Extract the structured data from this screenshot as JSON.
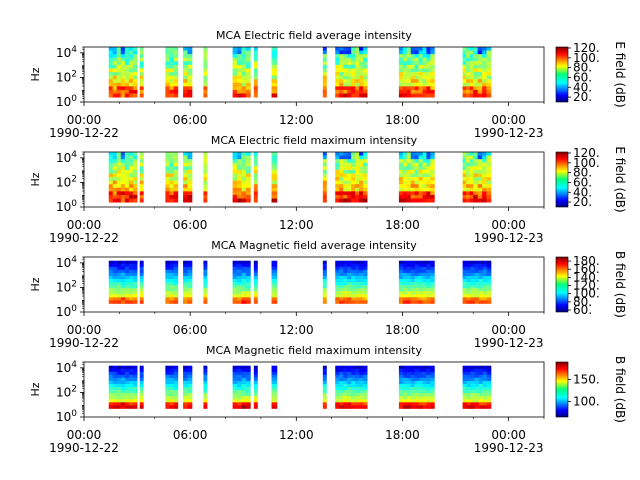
{
  "chart_data": [
    {
      "type": "heatmap",
      "title": "MCA  Electric field average intensity",
      "ylabel": "Hz",
      "y_scale": "log",
      "ylim": [
        1,
        30000
      ],
      "y_ticks": [
        {
          "exp": "0",
          "v": 1
        },
        {
          "exp": "2",
          "v": 100
        },
        {
          "exp": "4",
          "v": 10000
        }
      ],
      "xlim": [
        0,
        26
      ],
      "x_ticks": [
        {
          "v": 0,
          "label": "00:00"
        },
        {
          "v": 6,
          "label": "06:00"
        },
        {
          "v": 12,
          "label": "12:00"
        },
        {
          "v": 18,
          "label": "18:00"
        },
        {
          "v": 24,
          "label": "00:00"
        }
      ],
      "x_date_labels": [
        {
          "v": 0,
          "label": "1990-12-22"
        },
        {
          "v": 24,
          "label": "1990-12-23"
        }
      ],
      "colorbar": {
        "label": "E field (dB)",
        "ticks": [
          20,
          40,
          60,
          80,
          100,
          120
        ],
        "range": [
          10,
          122
        ],
        "tick_suffix": "."
      },
      "segments": [
        [
          1.4,
          1.85
        ],
        [
          1.85,
          3.0
        ],
        [
          3.15,
          3.35
        ],
        [
          4.6,
          5.3
        ],
        [
          5.6,
          6.1
        ],
        [
          6.75,
          6.95
        ],
        [
          8.4,
          9.4
        ],
        [
          9.6,
          9.8
        ],
        [
          10.6,
          10.9
        ],
        [
          13.5,
          13.7
        ],
        [
          14.2,
          16.0
        ],
        [
          17.8,
          19.8
        ],
        [
          21.4,
          22.0
        ],
        [
          22.0,
          23.0
        ]
      ],
      "freq_range": [
        2.5,
        30000
      ]
    },
    {
      "type": "heatmap",
      "title": "MCA  Electric field maximum intensity",
      "ylabel": "Hz",
      "y_scale": "log",
      "ylim": [
        1,
        30000
      ],
      "y_ticks": [
        {
          "exp": "0",
          "v": 1
        },
        {
          "exp": "2",
          "v": 100
        },
        {
          "exp": "4",
          "v": 10000
        }
      ],
      "xlim": [
        0,
        26
      ],
      "x_ticks": [
        {
          "v": 0,
          "label": "00:00"
        },
        {
          "v": 6,
          "label": "06:00"
        },
        {
          "v": 12,
          "label": "12:00"
        },
        {
          "v": 18,
          "label": "18:00"
        },
        {
          "v": 24,
          "label": "00:00"
        }
      ],
      "x_date_labels": [
        {
          "v": 0,
          "label": "1990-12-22"
        },
        {
          "v": 24,
          "label": "1990-12-23"
        }
      ],
      "colorbar": {
        "label": "E field (dB)",
        "ticks": [
          20,
          40,
          60,
          80,
          100,
          120
        ],
        "range": [
          10,
          122
        ],
        "tick_suffix": "."
      },
      "segments": [
        [
          1.4,
          1.85
        ],
        [
          1.85,
          3.0
        ],
        [
          3.15,
          3.35
        ],
        [
          4.6,
          5.3
        ],
        [
          5.6,
          6.1
        ],
        [
          6.75,
          6.95
        ],
        [
          8.4,
          9.4
        ],
        [
          9.6,
          9.8
        ],
        [
          10.6,
          10.9
        ],
        [
          13.5,
          13.7
        ],
        [
          14.2,
          16.0
        ],
        [
          17.8,
          19.8
        ],
        [
          21.4,
          22.0
        ],
        [
          22.0,
          23.0
        ]
      ],
      "freq_range": [
        2.5,
        30000
      ]
    },
    {
      "type": "heatmap",
      "title": "MCA  Magnetic field average intensity",
      "ylabel": "Hz",
      "y_scale": "log",
      "ylim": [
        1,
        30000
      ],
      "y_ticks": [
        {
          "exp": "0",
          "v": 1
        },
        {
          "exp": "2",
          "v": 100
        },
        {
          "exp": "4",
          "v": 10000
        }
      ],
      "xlim": [
        0,
        26
      ],
      "x_ticks": [
        {
          "v": 0,
          "label": "00:00"
        },
        {
          "v": 6,
          "label": "06:00"
        },
        {
          "v": 12,
          "label": "12:00"
        },
        {
          "v": 18,
          "label": "18:00"
        },
        {
          "v": 24,
          "label": "00:00"
        }
      ],
      "x_date_labels": [
        {
          "v": 0,
          "label": "1990-12-22"
        },
        {
          "v": 24,
          "label": "1990-12-23"
        }
      ],
      "colorbar": {
        "label": "B field (dB)",
        "ticks": [
          60,
          80,
          100,
          120,
          140,
          160,
          180
        ],
        "range": [
          55,
          190
        ],
        "tick_suffix": "."
      },
      "segments": [
        [
          1.4,
          3.0
        ],
        [
          3.15,
          3.35
        ],
        [
          4.6,
          5.3
        ],
        [
          5.6,
          6.1
        ],
        [
          6.75,
          6.95
        ],
        [
          8.4,
          9.4
        ],
        [
          9.6,
          9.8
        ],
        [
          10.6,
          10.9
        ],
        [
          13.5,
          13.7
        ],
        [
          14.2,
          16.0
        ],
        [
          17.8,
          19.8
        ],
        [
          21.4,
          23.0
        ]
      ],
      "freq_range": [
        5,
        15000
      ]
    },
    {
      "type": "heatmap",
      "title": "MCA  Magnetic field maximum intensity",
      "ylabel": "Hz",
      "y_scale": "log",
      "ylim": [
        1,
        30000
      ],
      "y_ticks": [
        {
          "exp": "0",
          "v": 1
        },
        {
          "exp": "2",
          "v": 100
        },
        {
          "exp": "4",
          "v": 10000
        }
      ],
      "xlim": [
        0,
        26
      ],
      "x_ticks": [
        {
          "v": 0,
          "label": "00:00"
        },
        {
          "v": 6,
          "label": "06:00"
        },
        {
          "v": 12,
          "label": "12:00"
        },
        {
          "v": 18,
          "label": "18:00"
        },
        {
          "v": 24,
          "label": "00:00"
        }
      ],
      "x_date_labels": [
        {
          "v": 0,
          "label": "1990-12-22"
        },
        {
          "v": 24,
          "label": "1990-12-23"
        }
      ],
      "colorbar": {
        "label": "B field (dB)",
        "ticks": [
          100,
          150
        ],
        "range": [
          65,
          190
        ],
        "tick_suffix": "."
      },
      "segments": [
        [
          1.4,
          3.0
        ],
        [
          3.15,
          3.35
        ],
        [
          4.6,
          5.3
        ],
        [
          5.6,
          6.1
        ],
        [
          6.75,
          6.95
        ],
        [
          8.4,
          9.4
        ],
        [
          9.6,
          9.8
        ],
        [
          10.6,
          10.9
        ],
        [
          13.5,
          13.7
        ],
        [
          14.2,
          16.0
        ],
        [
          17.8,
          19.8
        ],
        [
          21.4,
          23.0
        ]
      ],
      "freq_range": [
        5,
        15000
      ]
    }
  ]
}
